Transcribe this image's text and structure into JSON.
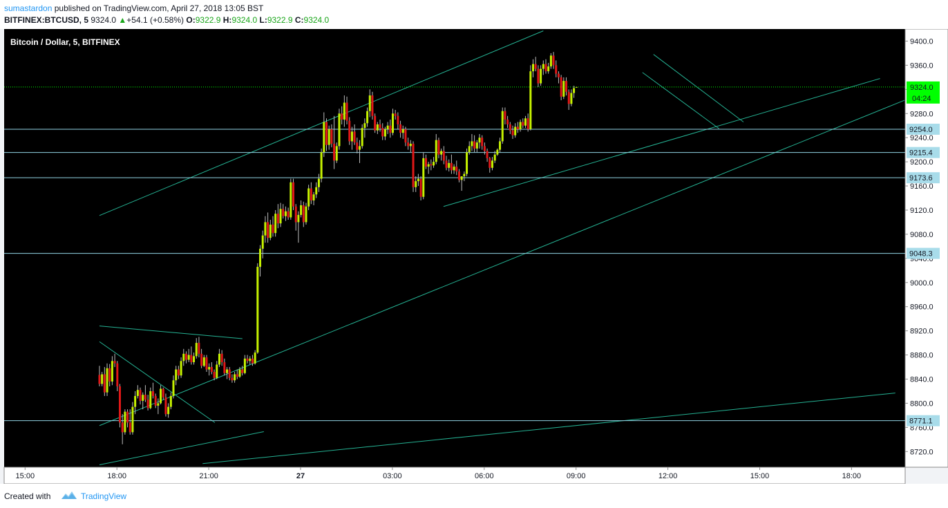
{
  "header": {
    "author": "sumastardon",
    "published": "published on TradingView.com, April 27, 2018 13:05 BST",
    "symbol": "BITFINEX:BTCUSD, 5",
    "last": "9324.0",
    "change": "+54.1 (+0.58%)",
    "o_label": "O:",
    "o_value": "9322.9",
    "h_label": "H:",
    "h_value": "9324.0",
    "l_label": "L:",
    "l_value": "9322.9",
    "c_label": "C:",
    "c_value": "9324.0"
  },
  "footer": {
    "created": "Created with",
    "brand": "TradingView"
  },
  "colors": {
    "background": "#000000",
    "up_candle": "#c6f200",
    "down_candle": "#e01818",
    "trendline": "#25b394",
    "hline": "#93d5e6",
    "price_line": "#00ff00",
    "axis_bg": "#ffffff"
  },
  "chart_data": {
    "type": "candlestick",
    "title": "Bitcoin / Dollar, 5, BITFINEX",
    "y_ticks": [
      8720,
      8760,
      8800,
      8840,
      8880,
      8920,
      8960,
      9000,
      9040,
      9080,
      9120,
      9160,
      9200,
      9240,
      9280,
      9320,
      9360,
      9400
    ],
    "x_ticks": [
      "15:00",
      "18:00",
      "21:00",
      "27",
      "03:00",
      "06:00",
      "09:00",
      "12:00",
      "15:00",
      "18:00"
    ],
    "ylim": [
      8694,
      9420
    ],
    "current_price": {
      "value": 9324.0,
      "label": "9324.0",
      "countdown": "04:24"
    },
    "horizontal_lines": [
      {
        "value": 9254.0,
        "label": "9254.0"
      },
      {
        "value": 9215.4,
        "label": "9215.4"
      },
      {
        "value": 9173.6,
        "label": "9173.6"
      },
      {
        "value": 9048.3,
        "label": "9048.3"
      },
      {
        "value": 8771.1,
        "label": "8771.1"
      }
    ],
    "trendlines_hours_since_27_00": [
      {
        "from": [
          -6.57,
          9111
        ],
        "to": [
          7.93,
          9417
        ]
      },
      {
        "from": [
          -6.57,
          8763
        ],
        "to": [
          19.73,
          9302
        ]
      },
      {
        "from": [
          -6.57,
          8698
        ],
        "to": [
          -1.2,
          8753
        ]
      },
      {
        "from": [
          -6.57,
          8928
        ],
        "to": [
          -1.9,
          8907
        ]
      },
      {
        "from": [
          -6.57,
          8902
        ],
        "to": [
          -2.8,
          8768
        ]
      },
      {
        "from": [
          -3.2,
          8700
        ],
        "to": [
          19.43,
          8817
        ]
      },
      {
        "from": [
          4.67,
          9126
        ],
        "to": [
          18.93,
          9338
        ]
      },
      {
        "from": [
          11.17,
          9348
        ],
        "to": [
          13.67,
          9255
        ]
      },
      {
        "from": [
          11.53,
          9378
        ],
        "to": [
          14.47,
          9266
        ]
      }
    ],
    "candles_ohlc": [
      [
        8847,
        8862,
        8828,
        8832
      ],
      [
        8832,
        8852,
        8828,
        8848
      ],
      [
        8848,
        8860,
        8812,
        8818
      ],
      [
        8818,
        8866,
        8812,
        8858
      ],
      [
        8858,
        8865,
        8828,
        8836
      ],
      [
        8836,
        8878,
        8830,
        8870
      ],
      [
        8870,
        8882,
        8860,
        8866
      ],
      [
        8866,
        8870,
        8820,
        8828
      ],
      [
        8828,
        8832,
        8760,
        8768
      ],
      [
        8768,
        8782,
        8732,
        8752
      ],
      [
        8752,
        8790,
        8748,
        8786
      ],
      [
        8786,
        8790,
        8760,
        8768
      ],
      [
        8768,
        8790,
        8748,
        8752
      ],
      [
        8752,
        8802,
        8748,
        8794
      ],
      [
        8794,
        8820,
        8782,
        8812
      ],
      [
        8812,
        8830,
        8808,
        8822
      ],
      [
        8822,
        8826,
        8798,
        8804
      ],
      [
        8804,
        8818,
        8790,
        8814
      ],
      [
        8814,
        8830,
        8802,
        8806
      ],
      [
        8806,
        8814,
        8788,
        8792
      ],
      [
        8792,
        8826,
        8790,
        8820
      ],
      [
        8820,
        8834,
        8808,
        8812
      ],
      [
        8812,
        8816,
        8792,
        8796
      ],
      [
        8796,
        8808,
        8782,
        8800
      ],
      [
        8800,
        8830,
        8798,
        8824
      ],
      [
        8824,
        8826,
        8806,
        8810
      ],
      [
        8810,
        8816,
        8778,
        8782
      ],
      [
        8782,
        8800,
        8776,
        8794
      ],
      [
        8794,
        8818,
        8790,
        8812
      ],
      [
        8812,
        8846,
        8808,
        8838
      ],
      [
        8838,
        8862,
        8830,
        8856
      ],
      [
        8856,
        8862,
        8840,
        8846
      ],
      [
        8846,
        8876,
        8842,
        8870
      ],
      [
        8870,
        8890,
        8862,
        8882
      ],
      [
        8882,
        8886,
        8866,
        8872
      ],
      [
        8872,
        8890,
        8868,
        8880
      ],
      [
        8880,
        8894,
        8864,
        8868
      ],
      [
        8868,
        8884,
        8864,
        8878
      ],
      [
        8878,
        8908,
        8874,
        8900
      ],
      [
        8900,
        8910,
        8876,
        8882
      ],
      [
        8882,
        8890,
        8858,
        8862
      ],
      [
        8862,
        8880,
        8860,
        8876
      ],
      [
        8876,
        8880,
        8852,
        8856
      ],
      [
        8856,
        8866,
        8846,
        8860
      ],
      [
        8860,
        8868,
        8848,
        8852
      ],
      [
        8852,
        8856,
        8838,
        8842
      ],
      [
        8842,
        8870,
        8840,
        8864
      ],
      [
        8864,
        8890,
        8860,
        8882
      ],
      [
        8882,
        8888,
        8862,
        8868
      ],
      [
        8868,
        8874,
        8846,
        8850
      ],
      [
        8850,
        8860,
        8840,
        8856
      ],
      [
        8856,
        8860,
        8838,
        8842
      ],
      [
        8842,
        8848,
        8834,
        8838
      ],
      [
        8838,
        8852,
        8834,
        8848
      ],
      [
        8848,
        8856,
        8840,
        8844
      ],
      [
        8844,
        8860,
        8842,
        8856
      ],
      [
        8856,
        8862,
        8846,
        8850
      ],
      [
        8850,
        8880,
        8848,
        8874
      ],
      [
        8874,
        8880,
        8866,
        8870
      ],
      [
        8870,
        8878,
        8864,
        8874
      ],
      [
        8874,
        8880,
        8862,
        8866
      ],
      [
        8866,
        8888,
        8864,
        8884
      ],
      [
        8884,
        9032,
        8882,
        9026
      ],
      [
        9026,
        9062,
        9010,
        9056
      ],
      [
        9056,
        9086,
        9040,
        9078
      ],
      [
        9078,
        9110,
        9066,
        9100
      ],
      [
        9100,
        9116,
        9066,
        9074
      ],
      [
        9074,
        9104,
        9070,
        9096
      ],
      [
        9096,
        9110,
        9076,
        9082
      ],
      [
        9082,
        9120,
        9076,
        9114
      ],
      [
        9114,
        9130,
        9090,
        9098
      ],
      [
        9098,
        9132,
        9092,
        9122
      ],
      [
        9122,
        9130,
        9106,
        9110
      ],
      [
        9110,
        9126,
        9102,
        9118
      ],
      [
        9118,
        9124,
        9104,
        9108
      ],
      [
        9108,
        9172,
        9104,
        9166
      ],
      [
        9166,
        9172,
        9120,
        9126
      ],
      [
        9126,
        9130,
        9086,
        9100
      ],
      [
        9100,
        9118,
        9066,
        9112
      ],
      [
        9112,
        9136,
        9108,
        9128
      ],
      [
        9128,
        9134,
        9092,
        9100
      ],
      [
        9100,
        9132,
        9096,
        9126
      ],
      [
        9126,
        9162,
        9120,
        9156
      ],
      [
        9156,
        9166,
        9130,
        9136
      ],
      [
        9136,
        9150,
        9128,
        9146
      ],
      [
        9146,
        9166,
        9140,
        9158
      ],
      [
        9158,
        9180,
        9150,
        9172
      ],
      [
        9172,
        9222,
        9166,
        9216
      ],
      [
        9216,
        9282,
        9208,
        9266
      ],
      [
        9266,
        9272,
        9218,
        9228
      ],
      [
        9228,
        9260,
        9220,
        9254
      ],
      [
        9254,
        9262,
        9224,
        9230
      ],
      [
        9230,
        9276,
        9188,
        9202
      ],
      [
        9202,
        9232,
        9198,
        9226
      ],
      [
        9226,
        9288,
        9220,
        9280
      ],
      [
        9280,
        9292,
        9262,
        9270
      ],
      [
        9270,
        9310,
        9258,
        9298
      ],
      [
        9298,
        9308,
        9262,
        9268
      ],
      [
        9268,
        9274,
        9228,
        9234
      ],
      [
        9234,
        9258,
        9220,
        9250
      ],
      [
        9250,
        9262,
        9228,
        9232
      ],
      [
        9232,
        9240,
        9214,
        9220
      ],
      [
        9220,
        9236,
        9198,
        9226
      ],
      [
        9226,
        9262,
        9222,
        9256
      ],
      [
        9256,
        9272,
        9240,
        9264
      ],
      [
        9264,
        9290,
        9258,
        9284
      ],
      [
        9284,
        9320,
        9274,
        9310
      ],
      [
        9310,
        9316,
        9270,
        9276
      ],
      [
        9276,
        9280,
        9248,
        9252
      ],
      [
        9252,
        9266,
        9246,
        9262
      ],
      [
        9262,
        9270,
        9250,
        9256
      ],
      [
        9256,
        9264,
        9236,
        9242
      ],
      [
        9242,
        9258,
        9236,
        9254
      ],
      [
        9254,
        9266,
        9246,
        9260
      ],
      [
        9260,
        9270,
        9240,
        9248
      ],
      [
        9248,
        9288,
        9244,
        9280
      ],
      [
        9280,
        9286,
        9270,
        9276
      ],
      [
        9276,
        9282,
        9254,
        9262
      ],
      [
        9262,
        9268,
        9240,
        9248
      ],
      [
        9248,
        9260,
        9238,
        9254
      ],
      [
        9254,
        9258,
        9226,
        9232
      ],
      [
        9232,
        9240,
        9220,
        9226
      ],
      [
        9226,
        9236,
        9216,
        9230
      ],
      [
        9230,
        9234,
        9150,
        9158
      ],
      [
        9158,
        9176,
        9150,
        9168
      ],
      [
        9168,
        9180,
        9160,
        9172
      ],
      [
        9172,
        9176,
        9136,
        9142
      ],
      [
        9142,
        9216,
        9138,
        9206
      ],
      [
        9206,
        9212,
        9188,
        9192
      ],
      [
        9192,
        9200,
        9180,
        9196
      ],
      [
        9196,
        9204,
        9186,
        9194
      ],
      [
        9194,
        9208,
        9190,
        9200
      ],
      [
        9200,
        9246,
        9196,
        9236
      ],
      [
        9236,
        9240,
        9206,
        9212
      ],
      [
        9212,
        9222,
        9202,
        9218
      ],
      [
        9218,
        9226,
        9196,
        9202
      ],
      [
        9202,
        9210,
        9186,
        9190
      ],
      [
        9190,
        9204,
        9184,
        9198
      ],
      [
        9198,
        9212,
        9180,
        9186
      ],
      [
        9186,
        9196,
        9180,
        9192
      ],
      [
        9192,
        9202,
        9178,
        9184
      ],
      [
        9184,
        9188,
        9166,
        9170
      ],
      [
        9170,
        9176,
        9152,
        9176
      ],
      [
        9176,
        9184,
        9168,
        9180
      ],
      [
        9180,
        9222,
        9176,
        9216
      ],
      [
        9216,
        9234,
        9212,
        9226
      ],
      [
        9226,
        9246,
        9218,
        9234
      ],
      [
        9234,
        9244,
        9216,
        9222
      ],
      [
        9222,
        9236,
        9216,
        9232
      ],
      [
        9232,
        9246,
        9222,
        9240
      ],
      [
        9240,
        9244,
        9220,
        9226
      ],
      [
        9226,
        9232,
        9212,
        9218
      ],
      [
        9218,
        9222,
        9200,
        9206
      ],
      [
        9206,
        9208,
        9182,
        9190
      ],
      [
        9190,
        9208,
        9186,
        9202
      ],
      [
        9202,
        9218,
        9198,
        9212
      ],
      [
        9212,
        9222,
        9210,
        9220
      ],
      [
        9220,
        9240,
        9216,
        9234
      ],
      [
        9234,
        9290,
        9230,
        9284
      ],
      [
        9284,
        9290,
        9262,
        9270
      ],
      [
        9270,
        9276,
        9256,
        9262
      ],
      [
        9262,
        9266,
        9246,
        9252
      ],
      [
        9252,
        9260,
        9238,
        9244
      ],
      [
        9244,
        9264,
        9240,
        9258
      ],
      [
        9258,
        9266,
        9248,
        9254
      ],
      [
        9254,
        9270,
        9250,
        9266
      ],
      [
        9266,
        9272,
        9256,
        9260
      ],
      [
        9260,
        9276,
        9256,
        9272
      ],
      [
        9272,
        9280,
        9250,
        9254
      ],
      [
        9254,
        9360,
        9252,
        9350
      ],
      [
        9350,
        9370,
        9340,
        9362
      ],
      [
        9362,
        9374,
        9350,
        9354
      ],
      [
        9354,
        9360,
        9324,
        9330
      ],
      [
        9330,
        9360,
        9326,
        9354
      ],
      [
        9354,
        9368,
        9344,
        9362
      ],
      [
        9362,
        9370,
        9346,
        9350
      ],
      [
        9350,
        9364,
        9346,
        9358
      ],
      [
        9358,
        9380,
        9354,
        9376
      ],
      [
        9376,
        9382,
        9354,
        9360
      ],
      [
        9360,
        9368,
        9340,
        9346
      ],
      [
        9346,
        9350,
        9330,
        9340
      ],
      [
        9340,
        9344,
        9302,
        9308
      ],
      [
        9308,
        9340,
        9304,
        9334
      ],
      [
        9334,
        9340,
        9310,
        9316
      ],
      [
        9316,
        9320,
        9286,
        9296
      ],
      [
        9296,
        9320,
        9292,
        9314
      ],
      [
        9314,
        9326,
        9306,
        9322
      ],
      [
        9322.9,
        9324,
        9322.9,
        9324
      ]
    ]
  }
}
